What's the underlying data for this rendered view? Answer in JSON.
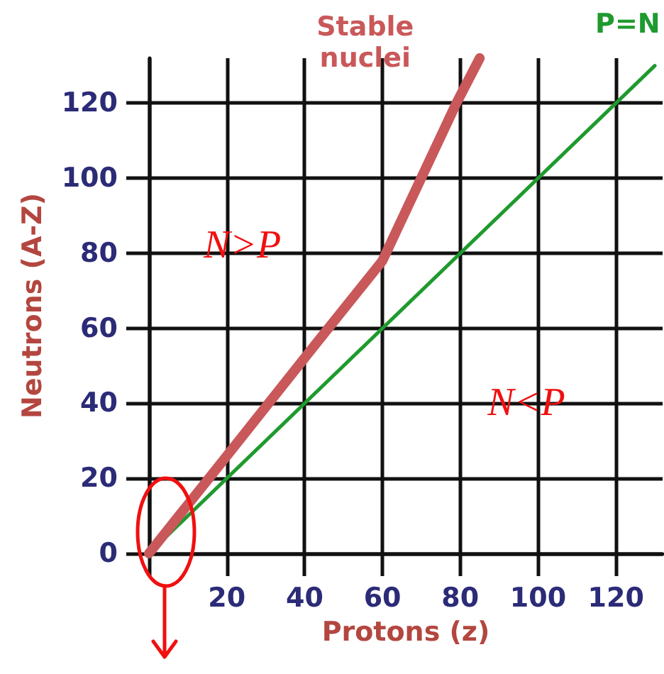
{
  "chart_data": {
    "type": "line",
    "xlabel": "Protons (z)",
    "ylabel": "Neutrons (A-Z)",
    "annotations": [
      "N>P",
      "N<P"
    ],
    "series": [
      {
        "name": "Stable nuclei",
        "color": "#c9585a",
        "x": [
          0,
          20,
          43,
          60,
          79,
          85
        ],
        "values": [
          0,
          26,
          56,
          78,
          120,
          132
        ]
      },
      {
        "name": "P=N",
        "color": "#1f9a2e",
        "x": [
          0,
          130
        ],
        "values": [
          0,
          130
        ]
      }
    ],
    "xlim": [
      0,
      132
    ],
    "ylim": [
      0,
      132
    ],
    "xticks": [
      {
        "value": 0,
        "label": null
      },
      20,
      40,
      60,
      80,
      100,
      120
    ],
    "yticks": [
      0,
      20,
      40,
      60,
      80,
      100,
      120
    ],
    "grid": true,
    "legend": false,
    "marker": "none",
    "line_style": "solid"
  }
}
